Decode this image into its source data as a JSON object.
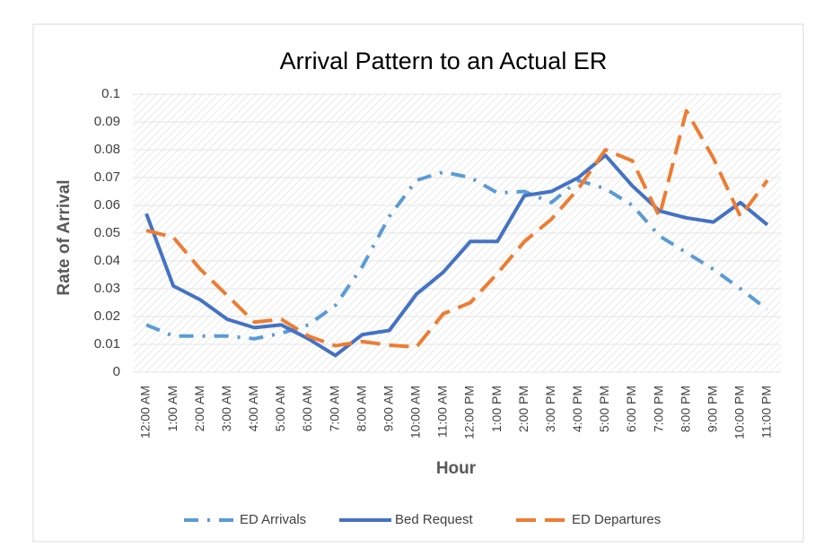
{
  "chart_data": {
    "type": "line",
    "title": "Arrival Pattern to an Actual ER",
    "x_label": "Hour",
    "y_label": "Rate of Arrival",
    "categories": [
      "12:00 AM",
      "1:00 AM",
      "2:00 AM",
      "3:00 AM",
      "4:00 AM",
      "5:00 AM",
      "6:00 AM",
      "7:00 AM",
      "8:00 AM",
      "9:00 AM",
      "10:00 AM",
      "11:00 AM",
      "12:00 PM",
      "1:00 PM",
      "2:00 PM",
      "3:00 PM",
      "4:00 PM",
      "5:00 PM",
      "6:00 PM",
      "7:00 PM",
      "8:00 PM",
      "9:00 PM",
      "10:00 PM",
      "11:00 PM"
    ],
    "series": [
      {
        "name": "ED Arrivals",
        "color": "#5b9bd5",
        "style": "dash-dot",
        "values": [
          0.017,
          0.013,
          0.013,
          0.013,
          0.012,
          0.014,
          0.017,
          0.024,
          0.038,
          0.056,
          0.069,
          0.072,
          0.07,
          0.0645,
          0.065,
          0.061,
          0.069,
          0.066,
          0.06,
          0.049,
          0.043,
          0.037,
          0.03,
          0.0225
        ]
      },
      {
        "name": "Bed Request",
        "color": "#4472c4",
        "style": "solid",
        "values": [
          0.057,
          0.031,
          0.026,
          0.019,
          0.016,
          0.017,
          0.012,
          0.006,
          0.0135,
          0.015,
          0.028,
          0.036,
          0.047,
          0.047,
          0.0635,
          0.065,
          0.07,
          0.078,
          0.067,
          0.058,
          0.0555,
          0.054,
          0.061,
          0.053
        ]
      },
      {
        "name": "ED Departures",
        "color": "#ed7d31",
        "style": "dash",
        "values": [
          0.051,
          0.0485,
          0.037,
          0.0275,
          0.018,
          0.019,
          0.013,
          0.0095,
          0.011,
          0.0097,
          0.009,
          0.021,
          0.025,
          0.0355,
          0.047,
          0.055,
          0.066,
          0.08,
          0.076,
          0.056,
          0.094,
          0.077,
          0.056,
          0.069
        ]
      }
    ],
    "ylim": [
      0,
      0.1
    ],
    "yticks": [
      0,
      0.01,
      0.02,
      0.03,
      0.04,
      0.05,
      0.06,
      0.07,
      0.08,
      0.09,
      0.1
    ],
    "grid": true,
    "legend": "bottom"
  }
}
